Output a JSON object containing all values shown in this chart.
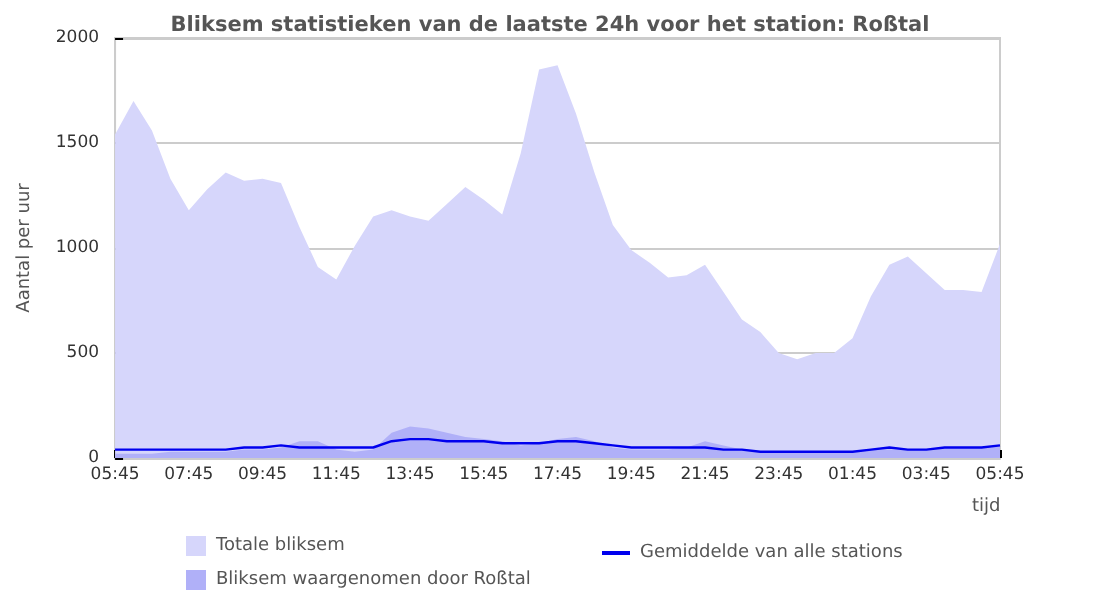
{
  "chart_data": {
    "type": "area",
    "title": "Bliksem statistieken van de laatste 24h voor het station: Roßtal",
    "xlabel": "tijd",
    "ylabel": "Aantal per uur",
    "categories": [
      "05:45",
      null,
      null,
      null,
      "07:45",
      null,
      null,
      null,
      "09:45",
      null,
      null,
      null,
      "11:45",
      null,
      null,
      null,
      "13:45",
      null,
      null,
      null,
      "15:45",
      null,
      null,
      null,
      "17:45",
      null,
      null,
      null,
      "19:45",
      null,
      null,
      null,
      "21:45",
      null,
      null,
      null,
      "23:45",
      null,
      null,
      null,
      "01:45",
      null,
      null,
      null,
      "03:45",
      null,
      null,
      null,
      "05:45"
    ],
    "series": [
      {
        "name": "Totale bliksem",
        "color": "#d6d6fb",
        "values": [
          1540,
          1700,
          1560,
          1330,
          1180,
          1280,
          1360,
          1320,
          1330,
          1310,
          1100,
          910,
          850,
          1010,
          1150,
          1180,
          1150,
          1130,
          1210,
          1290,
          1230,
          1160,
          1450,
          1850,
          1870,
          1640,
          1360,
          1110,
          990,
          930,
          860,
          870,
          920,
          790,
          660,
          600,
          500,
          470,
          500,
          500,
          570,
          770,
          920,
          960,
          880,
          800,
          800,
          790,
          1020
        ]
      },
      {
        "name": "Bliksem waargenomen door Roßtal",
        "color": "#b0b0f8",
        "values": [
          20,
          20,
          20,
          30,
          30,
          30,
          30,
          40,
          40,
          50,
          80,
          80,
          40,
          30,
          40,
          120,
          150,
          140,
          120,
          100,
          90,
          80,
          60,
          70,
          90,
          100,
          80,
          50,
          40,
          40,
          40,
          50,
          80,
          60,
          40,
          30,
          30,
          30,
          30,
          30,
          30,
          40,
          40,
          40,
          40,
          50,
          50,
          50,
          60
        ]
      },
      {
        "name": "Gemiddelde van alle stations",
        "type": "line",
        "color": "#0000ee",
        "values": [
          40,
          40,
          40,
          40,
          40,
          40,
          40,
          50,
          50,
          60,
          50,
          50,
          50,
          50,
          50,
          80,
          90,
          90,
          80,
          80,
          80,
          70,
          70,
          70,
          80,
          80,
          70,
          60,
          50,
          50,
          50,
          50,
          50,
          40,
          40,
          30,
          30,
          30,
          30,
          30,
          30,
          40,
          50,
          40,
          40,
          50,
          50,
          50,
          60
        ]
      }
    ],
    "ylim": [
      0,
      2000
    ],
    "yticks": [
      0,
      500,
      1000,
      1500,
      2000
    ],
    "grid": "y",
    "legend": "bottom",
    "marker": "none",
    "line_style": "solid"
  }
}
